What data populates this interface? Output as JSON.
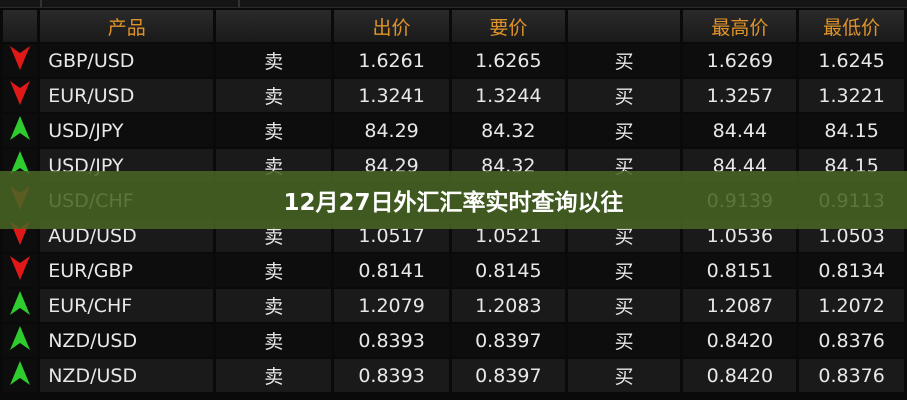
{
  "headers": {
    "product": "产品",
    "blank": "",
    "bid": "出价",
    "ask": "要价",
    "blank2": "",
    "high": "最高价",
    "low": "最低价"
  },
  "banner_title": "12月27日外汇汇率实时查询以往",
  "colors": {
    "up": "#2ecc2e",
    "down": "#e01818",
    "header_text": "#e0932a",
    "banner": "#486423"
  },
  "rows": [
    {
      "dir": "down",
      "pair": "GBP/USD",
      "sell": "卖",
      "bid": "1.6261",
      "ask": "1.6265",
      "buy": "买",
      "high": "1.6269",
      "low": "1.6245"
    },
    {
      "dir": "down",
      "pair": "EUR/USD",
      "sell": "卖",
      "bid": "1.3241",
      "ask": "1.3244",
      "buy": "买",
      "high": "1.3257",
      "low": "1.3221"
    },
    {
      "dir": "up",
      "pair": "USD/JPY",
      "sell": "卖",
      "bid": "84.29",
      "ask": "84.32",
      "buy": "买",
      "high": "84.44",
      "low": "84.15"
    },
    {
      "dir": "up",
      "pair": "USD/JPY",
      "sell": "卖",
      "bid": "84.29",
      "ask": "84.32",
      "buy": "买",
      "high": "84.44",
      "low": "84.15"
    },
    {
      "dir": "down",
      "pair": "USD/CHF",
      "sell": "",
      "bid": "",
      "ask": "",
      "buy": "",
      "high": "0.9139",
      "low": "0.9113"
    },
    {
      "dir": "down",
      "pair": "AUD/USD",
      "sell": "卖",
      "bid": "1.0517",
      "ask": "1.0521",
      "buy": "买",
      "high": "1.0536",
      "low": "1.0503"
    },
    {
      "dir": "down",
      "pair": "EUR/GBP",
      "sell": "卖",
      "bid": "0.8141",
      "ask": "0.8145",
      "buy": "买",
      "high": "0.8151",
      "low": "0.8134"
    },
    {
      "dir": "up",
      "pair": "EUR/CHF",
      "sell": "卖",
      "bid": "1.2079",
      "ask": "1.2083",
      "buy": "买",
      "high": "1.2087",
      "low": "1.2072"
    },
    {
      "dir": "up",
      "pair": "NZD/USD",
      "sell": "卖",
      "bid": "0.8393",
      "ask": "0.8397",
      "buy": "买",
      "high": "0.8420",
      "low": "0.8376"
    },
    {
      "dir": "up",
      "pair": "NZD/USD",
      "sell": "卖",
      "bid": "0.8393",
      "ask": "0.8397",
      "buy": "买",
      "high": "0.8420",
      "low": "0.8376"
    }
  ]
}
